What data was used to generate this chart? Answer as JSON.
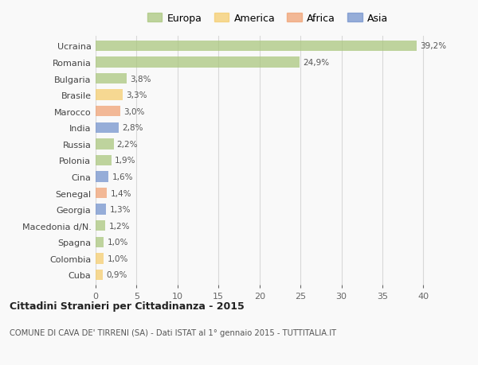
{
  "countries": [
    "Ucraina",
    "Romania",
    "Bulgaria",
    "Brasile",
    "Marocco",
    "India",
    "Russia",
    "Polonia",
    "Cina",
    "Senegal",
    "Georgia",
    "Macedonia d/N.",
    "Spagna",
    "Colombia",
    "Cuba"
  ],
  "values": [
    39.2,
    24.9,
    3.8,
    3.3,
    3.0,
    2.8,
    2.2,
    1.9,
    1.6,
    1.4,
    1.3,
    1.2,
    1.0,
    1.0,
    0.9
  ],
  "labels": [
    "39,2%",
    "24,9%",
    "3,8%",
    "3,3%",
    "3,0%",
    "2,8%",
    "2,2%",
    "1,9%",
    "1,6%",
    "1,4%",
    "1,3%",
    "1,2%",
    "1,0%",
    "1,0%",
    "0,9%"
  ],
  "continents": [
    "Europa",
    "Europa",
    "Europa",
    "America",
    "Africa",
    "Asia",
    "Europa",
    "Europa",
    "Asia",
    "Africa",
    "Asia",
    "Europa",
    "Europa",
    "America",
    "America"
  ],
  "colors": {
    "Europa": "#a8c57a",
    "America": "#f5cc6a",
    "Africa": "#f0a070",
    "Asia": "#7090cc"
  },
  "xlim": [
    0,
    42
  ],
  "xticks": [
    0,
    5,
    10,
    15,
    20,
    25,
    30,
    35,
    40
  ],
  "title": "Cittadini Stranieri per Cittadinanza - 2015",
  "subtitle": "COMUNE DI CAVA DE' TIRRENI (SA) - Dati ISTAT al 1° gennaio 2015 - TUTTITALIA.IT",
  "bg_color": "#f9f9f9",
  "bar_alpha": 0.72,
  "grid_color": "#d8d8d8",
  "legend_order": [
    "Europa",
    "America",
    "Africa",
    "Asia"
  ]
}
